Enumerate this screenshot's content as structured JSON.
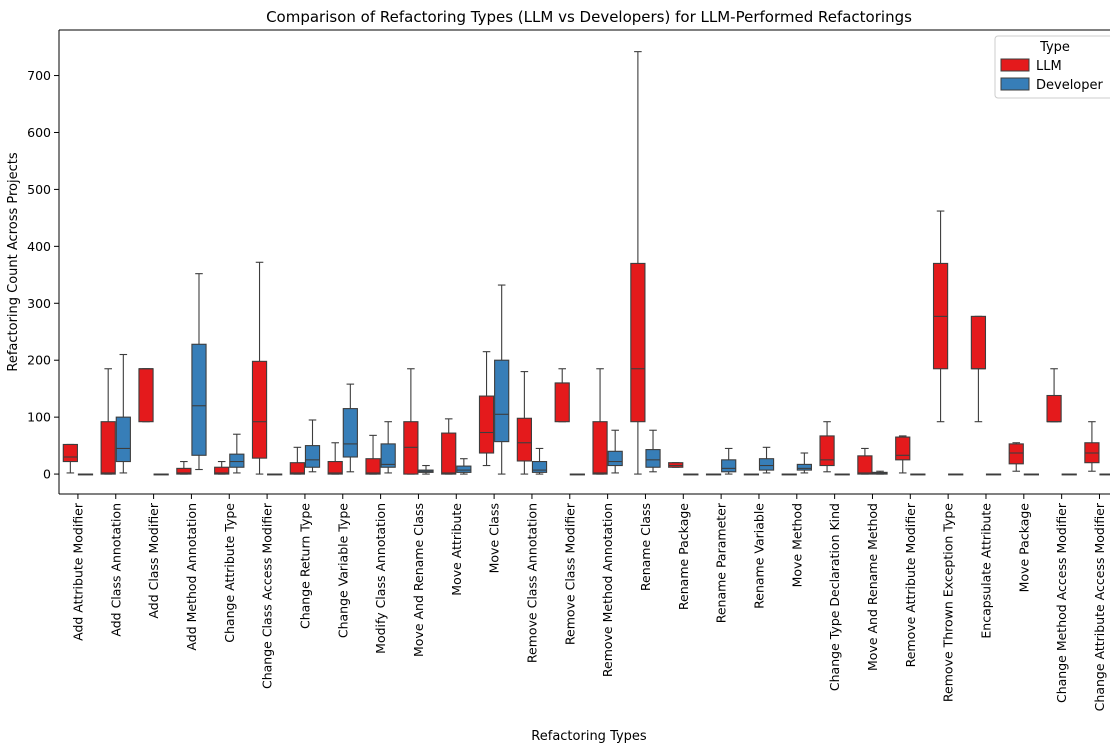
{
  "chart_data": {
    "type": "box",
    "title": "Comparison of Refactoring Types (LLM vs Developers) for LLM-Performed Refactorings",
    "xlabel": "Refactoring Types",
    "ylabel": "Refactoring Count Across Projects",
    "ylim": [
      -35,
      780
    ],
    "yticks": [
      0,
      100,
      200,
      300,
      400,
      500,
      600,
      700
    ],
    "grid": false,
    "legend": {
      "title": "Type",
      "position": "top-right",
      "entries": [
        "LLM",
        "Developer"
      ]
    },
    "colors": {
      "LLM": "#e41a1c",
      "Developer": "#377eb8",
      "edge": "#3d3d3d"
    },
    "categories": [
      "Add Attribute Modifier",
      "Add Class Annotation",
      "Add Class Modifier",
      "Add Method Annotation",
      "Change Attribute Type",
      "Change Class Access Modifier",
      "Change Return Type",
      "Change Variable Type",
      "Modify Class Annotation",
      "Move And Rename Class",
      "Move Attribute",
      "Move Class",
      "Remove Class Annotation",
      "Remove Class Modifier",
      "Remove Method Annotation",
      "Rename Class",
      "Rename Package",
      "Rename Parameter",
      "Rename Variable",
      "Move Method",
      "Change Type Declaration Kind",
      "Move And Rename Method",
      "Remove Attribute Modifier",
      "Remove Thrown Exception Type",
      "Encapsulate Attribute",
      "Move Package",
      "Change Method Access Modifier",
      "Change Attribute Access Modifier"
    ],
    "series": [
      {
        "name": "LLM",
        "boxes": [
          {
            "min": 2,
            "q1": 22,
            "median": 30,
            "q3": 52,
            "max": 52
          },
          {
            "min": 0,
            "q1": 0,
            "median": 2,
            "q3": 92,
            "max": 185
          },
          {
            "min": 92,
            "q1": 92,
            "median": 185,
            "q3": 185,
            "max": 185
          },
          {
            "min": 0,
            "q1": 0,
            "median": 2,
            "q3": 10,
            "max": 22
          },
          {
            "min": 0,
            "q1": 0,
            "median": 2,
            "q3": 12,
            "max": 22
          },
          {
            "min": 0,
            "q1": 28,
            "median": 92,
            "q3": 198,
            "max": 372
          },
          {
            "min": 0,
            "q1": 0,
            "median": 2,
            "q3": 20,
            "max": 47
          },
          {
            "min": 0,
            "q1": 0,
            "median": 2,
            "q3": 22,
            "max": 55
          },
          {
            "min": 0,
            "q1": 0,
            "median": 2,
            "q3": 27,
            "max": 68
          },
          {
            "min": 0,
            "q1": 0,
            "median": 47,
            "q3": 92,
            "max": 185
          },
          {
            "min": 0,
            "q1": 0,
            "median": 2,
            "q3": 72,
            "max": 97
          },
          {
            "min": 15,
            "q1": 37,
            "median": 73,
            "q3": 137,
            "max": 215
          },
          {
            "min": 0,
            "q1": 23,
            "median": 55,
            "q3": 98,
            "max": 180
          },
          {
            "min": 92,
            "q1": 92,
            "median": 160,
            "q3": 160,
            "max": 185
          },
          {
            "min": 0,
            "q1": 0,
            "median": 2,
            "q3": 92,
            "max": 185
          },
          {
            "min": 0,
            "q1": 92,
            "median": 185,
            "q3": 370,
            "max": 742
          },
          {
            "min": 12,
            "q1": 12,
            "median": 15,
            "q3": 20,
            "max": 20
          },
          {
            "min": 0,
            "q1": 0,
            "median": 0,
            "q3": 0,
            "max": 0
          },
          {
            "min": 0,
            "q1": 0,
            "median": 0,
            "q3": 0,
            "max": 0
          },
          {
            "min": 0,
            "q1": 0,
            "median": 0,
            "q3": 0,
            "max": 0
          },
          {
            "min": 4,
            "q1": 15,
            "median": 25,
            "q3": 67,
            "max": 92
          },
          {
            "min": 0,
            "q1": 0,
            "median": 2,
            "q3": 32,
            "max": 45
          },
          {
            "min": 2,
            "q1": 25,
            "median": 33,
            "q3": 65,
            "max": 67
          },
          {
            "min": 92,
            "q1": 185,
            "median": 277,
            "q3": 370,
            "max": 462
          },
          {
            "min": 92,
            "q1": 185,
            "median": 185,
            "q3": 277,
            "max": 277
          },
          {
            "min": 5,
            "q1": 18,
            "median": 37,
            "q3": 53,
            "max": 55
          },
          {
            "min": 92,
            "q1": 92,
            "median": 92,
            "q3": 138,
            "max": 185
          },
          {
            "min": 5,
            "q1": 20,
            "median": 37,
            "q3": 55,
            "max": 92
          }
        ]
      },
      {
        "name": "Developer",
        "boxes": [
          {
            "min": 0,
            "q1": 0,
            "median": 0,
            "q3": 0,
            "max": 0
          },
          {
            "min": 2,
            "q1": 22,
            "median": 45,
            "q3": 100,
            "max": 210
          },
          {
            "min": 0,
            "q1": 0,
            "median": 0,
            "q3": 0,
            "max": 0
          },
          {
            "min": 8,
            "q1": 33,
            "median": 120,
            "q3": 228,
            "max": 352
          },
          {
            "min": 2,
            "q1": 12,
            "median": 22,
            "q3": 35,
            "max": 70
          },
          {
            "min": 0,
            "q1": 0,
            "median": 0,
            "q3": 0,
            "max": 0
          },
          {
            "min": 4,
            "q1": 12,
            "median": 25,
            "q3": 50,
            "max": 95
          },
          {
            "min": 4,
            "q1": 30,
            "median": 53,
            "q3": 115,
            "max": 158
          },
          {
            "min": 2,
            "q1": 12,
            "median": 17,
            "q3": 53,
            "max": 92
          },
          {
            "min": 0,
            "q1": 3,
            "median": 5,
            "q3": 7,
            "max": 15
          },
          {
            "min": 0,
            "q1": 3,
            "median": 7,
            "q3": 14,
            "max": 27
          },
          {
            "min": 0,
            "q1": 57,
            "median": 105,
            "q3": 200,
            "max": 332
          },
          {
            "min": 0,
            "q1": 3,
            "median": 7,
            "q3": 22,
            "max": 45
          },
          {
            "min": 0,
            "q1": 0,
            "median": 0,
            "q3": 0,
            "max": 0
          },
          {
            "min": 2,
            "q1": 15,
            "median": 22,
            "q3": 40,
            "max": 77
          },
          {
            "min": 4,
            "q1": 12,
            "median": 25,
            "q3": 43,
            "max": 77
          },
          {
            "min": 0,
            "q1": 0,
            "median": 0,
            "q3": 0,
            "max": 0
          },
          {
            "min": 0,
            "q1": 4,
            "median": 10,
            "q3": 25,
            "max": 45
          },
          {
            "min": 2,
            "q1": 7,
            "median": 15,
            "q3": 27,
            "max": 47
          },
          {
            "min": 2,
            "q1": 7,
            "median": 10,
            "q3": 17,
            "max": 37
          },
          {
            "min": 0,
            "q1": 0,
            "median": 0,
            "q3": 0,
            "max": 0
          },
          {
            "min": 0,
            "q1": 0,
            "median": 2,
            "q3": 3,
            "max": 5
          },
          {
            "min": 0,
            "q1": 0,
            "median": 0,
            "q3": 0,
            "max": 0
          },
          {
            "min": 0,
            "q1": 0,
            "median": 0,
            "q3": 0,
            "max": 0
          },
          {
            "min": 0,
            "q1": 0,
            "median": 0,
            "q3": 0,
            "max": 0
          },
          {
            "min": 0,
            "q1": 0,
            "median": 0,
            "q3": 0,
            "max": 0
          },
          {
            "min": 0,
            "q1": 0,
            "median": 0,
            "q3": 0,
            "max": 0
          },
          {
            "min": 0,
            "q1": 0,
            "median": 0,
            "q3": 0,
            "max": 0
          }
        ]
      }
    ]
  }
}
